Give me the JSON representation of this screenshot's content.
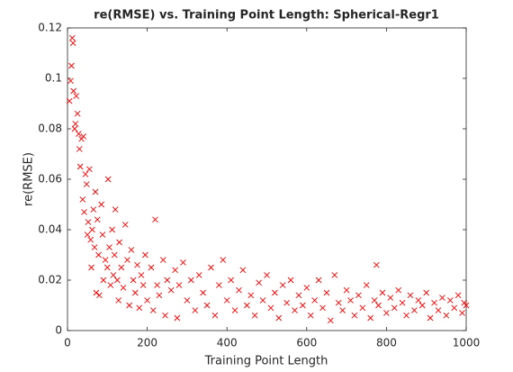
{
  "chart_data": {
    "type": "scatter",
    "title": "re(RMSE) vs. Training Point Length: Spherical-Regr1",
    "xlabel": "Training Point Length",
    "ylabel": "re(RMSE)",
    "color": "#ff0000",
    "xlim": [
      0,
      1000
    ],
    "xticks": [
      0,
      200,
      400,
      600,
      800,
      1000
    ],
    "ylim": [
      0,
      0.12
    ],
    "yticks": [
      0,
      0.02,
      0.04,
      0.06,
      0.08,
      0.1,
      0.12
    ],
    "x": [
      5,
      8,
      10,
      12,
      14,
      15,
      18,
      20,
      22,
      25,
      28,
      30,
      32,
      35,
      38,
      40,
      42,
      45,
      48,
      50,
      52,
      55,
      58,
      60,
      62,
      65,
      68,
      70,
      72,
      75,
      78,
      80,
      85,
      88,
      90,
      95,
      100,
      102,
      105,
      108,
      112,
      115,
      118,
      120,
      125,
      128,
      130,
      135,
      140,
      145,
      150,
      155,
      160,
      165,
      170,
      175,
      180,
      185,
      190,
      195,
      200,
      210,
      215,
      220,
      225,
      230,
      240,
      245,
      250,
      260,
      270,
      275,
      280,
      290,
      300,
      310,
      320,
      330,
      340,
      350,
      360,
      370,
      380,
      390,
      400,
      410,
      420,
      430,
      440,
      450,
      460,
      470,
      480,
      490,
      500,
      510,
      520,
      530,
      540,
      550,
      560,
      570,
      580,
      590,
      600,
      610,
      620,
      630,
      640,
      650,
      660,
      670,
      680,
      690,
      700,
      710,
      720,
      730,
      740,
      750,
      760,
      770,
      775,
      780,
      790,
      800,
      810,
      820,
      830,
      840,
      850,
      860,
      870,
      880,
      890,
      900,
      910,
      920,
      930,
      940,
      950,
      960,
      970,
      980,
      990,
      995,
      1000
    ],
    "values": [
      0.091,
      0.099,
      0.105,
      0.116,
      0.114,
      0.095,
      0.08,
      0.082,
      0.093,
      0.086,
      0.078,
      0.072,
      0.065,
      0.076,
      0.052,
      0.077,
      0.047,
      0.062,
      0.058,
      0.038,
      0.043,
      0.064,
      0.036,
      0.025,
      0.04,
      0.048,
      0.033,
      0.055,
      0.015,
      0.044,
      0.03,
      0.014,
      0.05,
      0.038,
      0.02,
      0.028,
      0.025,
      0.06,
      0.033,
      0.018,
      0.04,
      0.022,
      0.03,
      0.048,
      0.02,
      0.012,
      0.035,
      0.025,
      0.017,
      0.042,
      0.028,
      0.01,
      0.032,
      0.02,
      0.015,
      0.026,
      0.009,
      0.022,
      0.018,
      0.03,
      0.012,
      0.025,
      0.008,
      0.044,
      0.018,
      0.014,
      0.028,
      0.006,
      0.02,
      0.016,
      0.024,
      0.005,
      0.018,
      0.027,
      0.012,
      0.02,
      0.008,
      0.022,
      0.015,
      0.01,
      0.025,
      0.006,
      0.018,
      0.028,
      0.012,
      0.02,
      0.008,
      0.016,
      0.024,
      0.01,
      0.014,
      0.006,
      0.019,
      0.012,
      0.022,
      0.009,
      0.015,
      0.005,
      0.018,
      0.011,
      0.02,
      0.008,
      0.014,
      0.01,
      0.017,
      0.006,
      0.012,
      0.02,
      0.009,
      0.015,
      0.004,
      0.022,
      0.011,
      0.008,
      0.016,
      0.012,
      0.006,
      0.014,
      0.009,
      0.018,
      0.005,
      0.012,
      0.026,
      0.01,
      0.015,
      0.007,
      0.013,
      0.009,
      0.016,
      0.011,
      0.006,
      0.014,
      0.008,
      0.012,
      0.01,
      0.015,
      0.005,
      0.011,
      0.008,
      0.013,
      0.006,
      0.012,
      0.009,
      0.014,
      0.007,
      0.011,
      0.01
    ]
  }
}
